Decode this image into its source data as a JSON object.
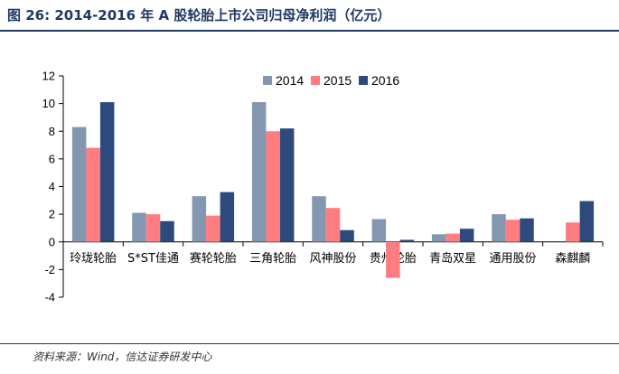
{
  "title": "图 26:  2014-2016 年 A 股轮胎上市公司归母净利润（亿元）",
  "source": "资料来源：Wind，信达证券研发中心",
  "chart_data": {
    "type": "bar",
    "categories": [
      "玲珑轮胎",
      "S*ST佳通",
      "赛轮轮胎",
      "三角轮胎",
      "风神股份",
      "贵州轮胎",
      "青岛双星",
      "通用股份",
      "森麒麟"
    ],
    "series": [
      {
        "name": "2014",
        "color": "#8497b0",
        "values": [
          8.3,
          2.1,
          3.3,
          10.1,
          3.3,
          1.65,
          0.55,
          2.0,
          null
        ]
      },
      {
        "name": "2015",
        "color": "#ff7c80",
        "values": [
          6.8,
          2.0,
          1.9,
          8.0,
          2.45,
          -2.6,
          0.6,
          1.6,
          1.4
        ]
      },
      {
        "name": "2016",
        "color": "#2e4a7d",
        "values": [
          10.1,
          1.5,
          3.6,
          8.2,
          0.85,
          0.15,
          0.95,
          1.7,
          2.95
        ]
      }
    ],
    "ylim": [
      -4,
      12
    ],
    "yticks": [
      -4,
      -2,
      0,
      2,
      4,
      6,
      8,
      10,
      12
    ],
    "xlabel": "",
    "ylabel": "",
    "legend": "top-center",
    "grid": false
  }
}
